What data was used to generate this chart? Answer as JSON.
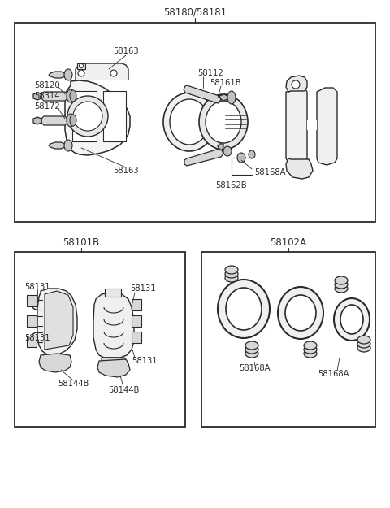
{
  "bg_color": "#ffffff",
  "line_color": "#2a2a2a",
  "text_color": "#2a2a2a",
  "fig_width": 4.8,
  "fig_height": 6.25,
  "dpi": 100,
  "top_label": "58180/58181",
  "bottom_left_label": "58101B",
  "bottom_right_label": "58102A"
}
